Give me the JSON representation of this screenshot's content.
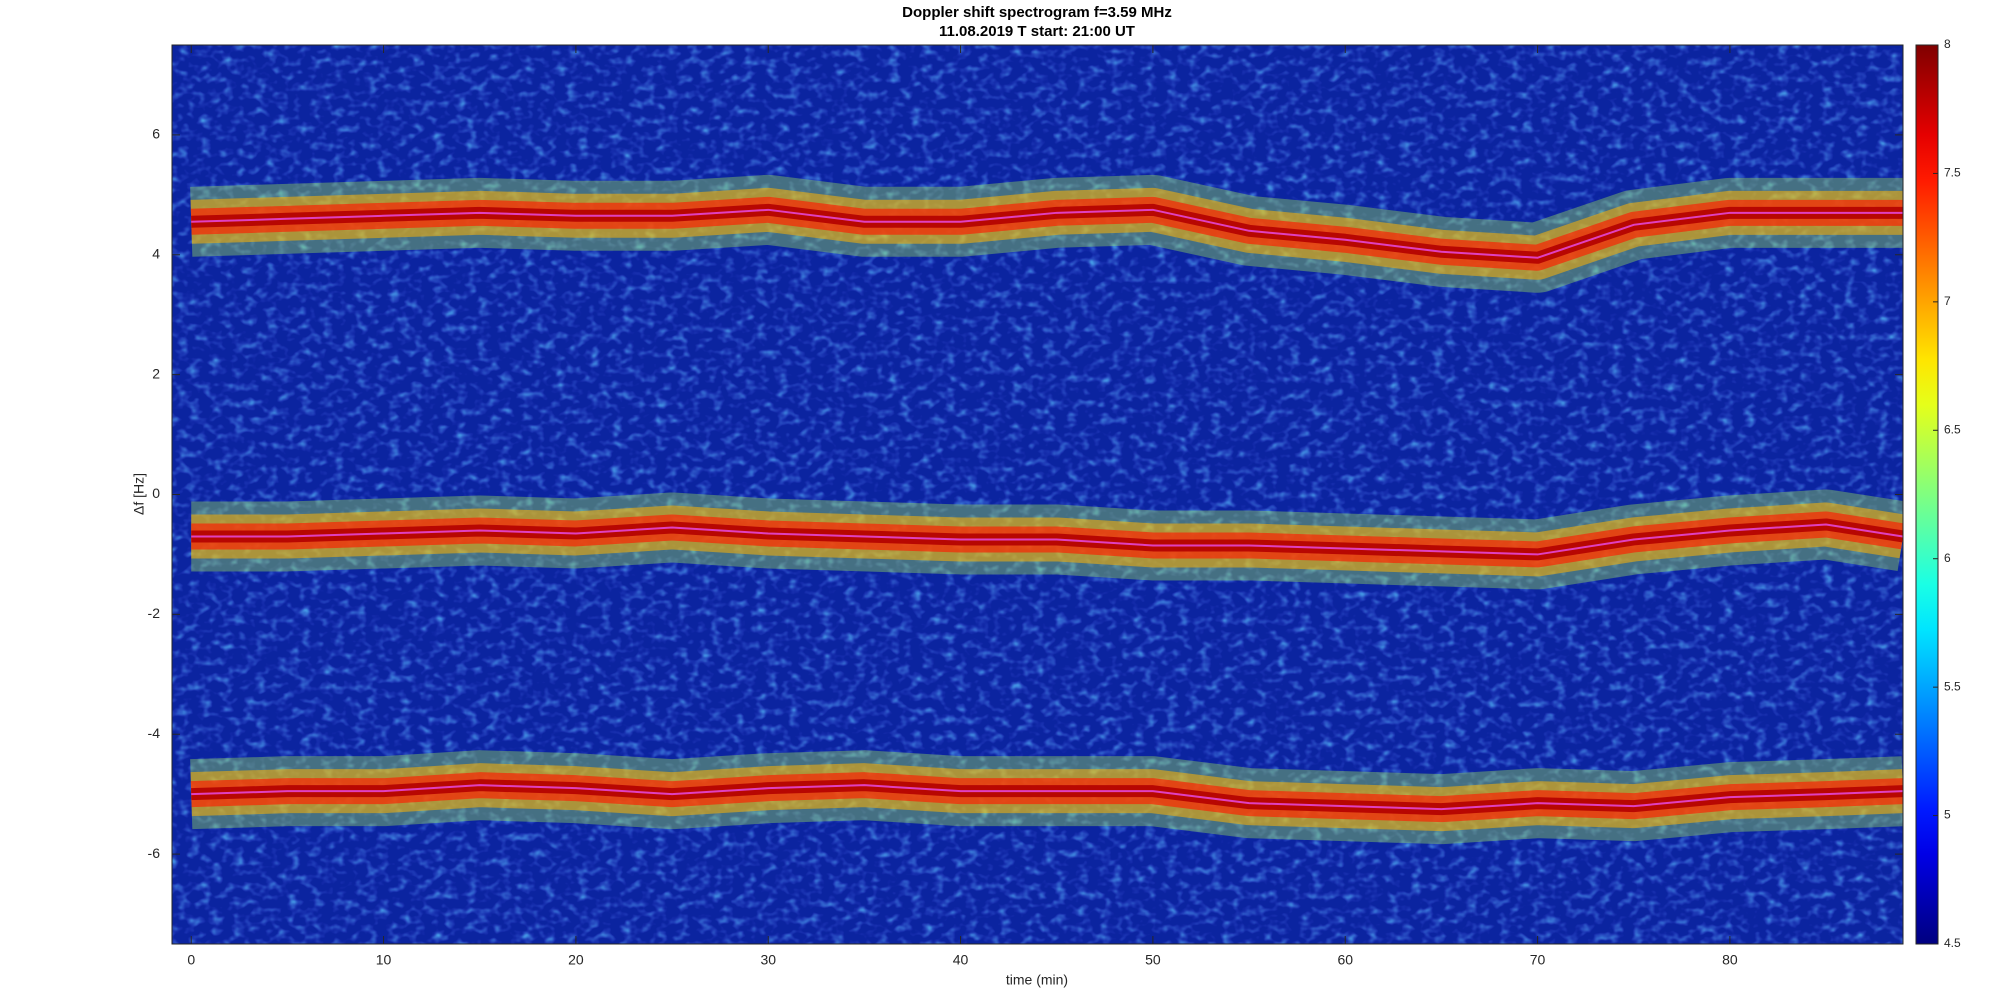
{
  "chart_data": {
    "type": "spectrogram",
    "title": "Doppler shift spectrogram f=3.59 MHz",
    "subtitle": "11.08.2019   T start: 21:00 UT",
    "x_label": "time (min)",
    "y_label": "Δf [Hz]",
    "xlim": [
      -1,
      89
    ],
    "xticks": [
      0,
      10,
      20,
      30,
      40,
      50,
      60,
      70,
      80
    ],
    "ylim": [
      -7.5,
      7.5
    ],
    "yticks": [
      -6,
      -4,
      -2,
      0,
      2,
      4,
      6
    ],
    "colormap": "jet",
    "clim": [
      4.5,
      8
    ],
    "cticks": [
      4.5,
      5,
      5.5,
      6,
      6.5,
      7,
      7.5,
      8
    ],
    "x": [
      0,
      5,
      10,
      15,
      20,
      25,
      30,
      35,
      40,
      45,
      50,
      55,
      60,
      65,
      70,
      75,
      80,
      85,
      89
    ],
    "series": [
      {
        "color": "#e040c0",
        "values": [
          4.55,
          4.6,
          4.65,
          4.7,
          4.65,
          4.65,
          4.75,
          4.55,
          4.55,
          4.7,
          4.75,
          4.4,
          4.25,
          4.05,
          3.95,
          4.5,
          4.7,
          4.7,
          4.7
        ]
      },
      {
        "color": "#e040c0",
        "values": [
          -0.7,
          -0.7,
          -0.65,
          -0.6,
          -0.65,
          -0.55,
          -0.65,
          -0.7,
          -0.75,
          -0.75,
          -0.85,
          -0.85,
          -0.9,
          -0.95,
          -1.0,
          -0.75,
          -0.6,
          -0.5,
          -0.7
        ]
      },
      {
        "color": "#e040c0",
        "values": [
          -5.0,
          -4.95,
          -4.95,
          -4.85,
          -4.9,
          -5.0,
          -4.9,
          -4.85,
          -4.95,
          -4.95,
          -4.95,
          -5.15,
          -5.2,
          -5.25,
          -5.15,
          -5.2,
          -5.05,
          -5.0,
          -4.95
        ]
      }
    ]
  }
}
